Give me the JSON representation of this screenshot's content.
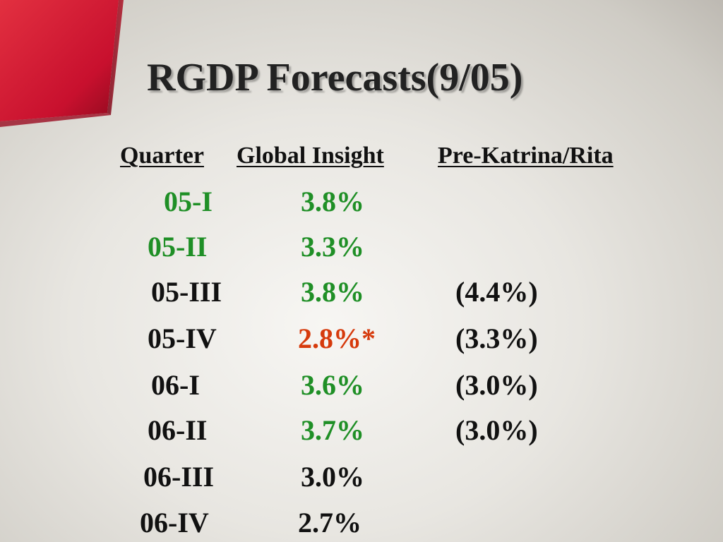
{
  "title": "RGDP Forecasts(9/05)",
  "colors": {
    "green": "#1f8f26",
    "red": "#d63a0c",
    "dark": "#111111",
    "accent": "#c8102e"
  },
  "headers": {
    "quarter": "Quarter",
    "global": "Global Insight",
    "pre": "Pre-Katrina/Rita"
  },
  "rows": [
    {
      "quarter": "05-I",
      "global": "3.8%",
      "pre": ""
    },
    {
      "quarter": "05-II",
      "global": "3.3%",
      "pre": ""
    },
    {
      "quarter": "05-III",
      "global": "3.8%",
      "pre": "(4.4%)"
    },
    {
      "quarter": "05-IV",
      "global": "2.8%*",
      "pre": "(3.3%)"
    },
    {
      "quarter": "06-I",
      "global": "3.6%",
      "pre": "(3.0%)"
    },
    {
      "quarter": "06-II",
      "global": "3.7%",
      "pre": "(3.0%)"
    },
    {
      "quarter": "06-III",
      "global": "3.0%",
      "pre": ""
    },
    {
      "quarter": "06-IV",
      "global": "2.7%",
      "pre": ""
    }
  ]
}
